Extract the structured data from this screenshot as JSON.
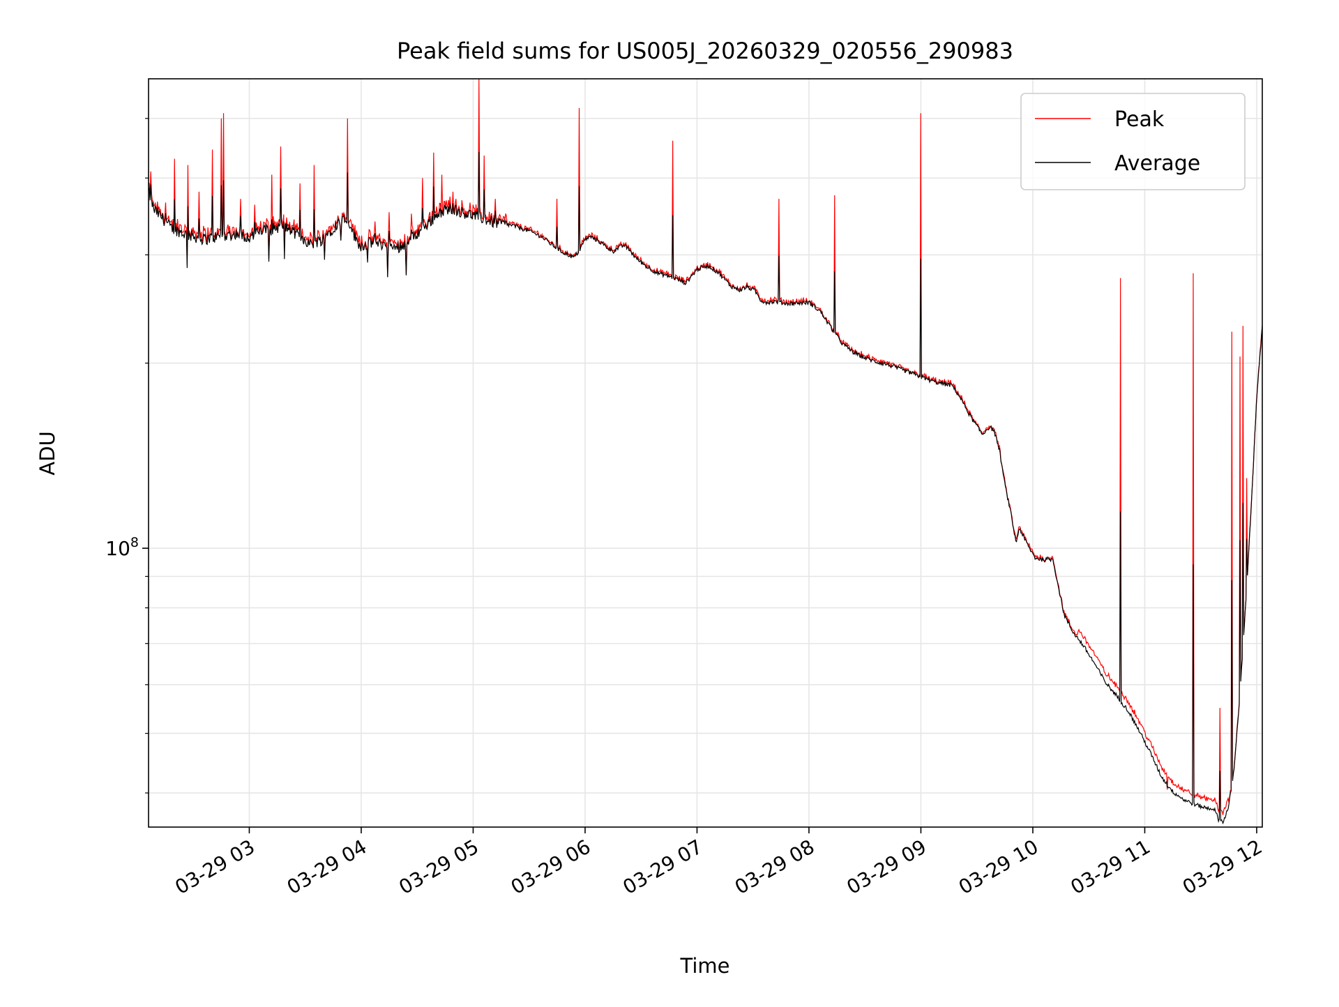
{
  "chart_data": {
    "type": "line",
    "title": "Peak field sums for US005J_20260329_020556_290983",
    "xlabel": "Time",
    "ylabel": "ADU",
    "yscale": "log",
    "ylim": [
      35200000,
      580000000
    ],
    "xlim_hours": [
      2.1,
      12.05
    ],
    "grid": true,
    "legend_position": "top-right",
    "x_ticks": [
      {
        "h": 3,
        "label": "03-29 03"
      },
      {
        "h": 4,
        "label": "03-29 04"
      },
      {
        "h": 5,
        "label": "03-29 05"
      },
      {
        "h": 6,
        "label": "03-29 06"
      },
      {
        "h": 7,
        "label": "03-29 07"
      },
      {
        "h": 8,
        "label": "03-29 08"
      },
      {
        "h": 9,
        "label": "03-29 09"
      },
      {
        "h": 10,
        "label": "03-29 10"
      },
      {
        "h": 11,
        "label": "03-29 11"
      },
      {
        "h": 12,
        "label": "03-29 12"
      }
    ],
    "y_major_ticks": [
      {
        "value": 100000000,
        "base": "10",
        "exp": "8"
      }
    ],
    "y_minor_ticks": [
      40000000,
      50000000,
      60000000,
      70000000,
      80000000,
      90000000,
      200000000,
      300000000,
      400000000,
      500000000
    ],
    "series": [
      {
        "name": "Average",
        "color": "#000000",
        "points": [
          [
            2.1,
            380000000
          ],
          [
            2.15,
            355000000
          ],
          [
            2.22,
            345000000
          ],
          [
            2.3,
            332000000
          ],
          [
            2.45,
            323000000
          ],
          [
            2.6,
            318000000
          ],
          [
            2.75,
            322000000
          ],
          [
            2.9,
            325000000
          ],
          [
            3.0,
            320000000
          ],
          [
            3.1,
            328000000
          ],
          [
            3.2,
            330000000
          ],
          [
            3.3,
            335000000
          ],
          [
            3.45,
            322000000
          ],
          [
            3.55,
            312000000
          ],
          [
            3.65,
            318000000
          ],
          [
            3.75,
            332000000
          ],
          [
            3.85,
            345000000
          ],
          [
            3.9,
            338000000
          ],
          [
            3.95,
            318000000
          ],
          [
            4.0,
            310000000
          ],
          [
            4.1,
            315000000
          ],
          [
            4.2,
            312000000
          ],
          [
            4.3,
            308000000
          ],
          [
            4.4,
            312000000
          ],
          [
            4.5,
            325000000
          ],
          [
            4.6,
            338000000
          ],
          [
            4.7,
            352000000
          ],
          [
            4.8,
            358000000
          ],
          [
            4.9,
            352000000
          ],
          [
            5.0,
            348000000
          ],
          [
            5.1,
            343000000
          ],
          [
            5.2,
            338000000
          ],
          [
            5.35,
            335000000
          ],
          [
            5.5,
            328000000
          ],
          [
            5.6,
            322000000
          ],
          [
            5.7,
            312000000
          ],
          [
            5.8,
            303000000
          ],
          [
            5.9,
            297000000
          ],
          [
            5.95,
            305000000
          ],
          [
            6.0,
            318000000
          ],
          [
            6.05,
            321000000
          ],
          [
            6.12,
            316000000
          ],
          [
            6.2,
            308000000
          ],
          [
            6.25,
            304000000
          ],
          [
            6.3,
            308000000
          ],
          [
            6.35,
            311000000
          ],
          [
            6.4,
            305000000
          ],
          [
            6.45,
            297000000
          ],
          [
            6.55,
            287000000
          ],
          [
            6.65,
            280000000
          ],
          [
            6.75,
            277000000
          ],
          [
            6.8,
            275000000
          ],
          [
            6.9,
            270000000
          ],
          [
            6.95,
            277000000
          ],
          [
            7.0,
            284000000
          ],
          [
            7.1,
            288000000
          ],
          [
            7.2,
            280000000
          ],
          [
            7.3,
            267000000
          ],
          [
            7.38,
            263000000
          ],
          [
            7.45,
            266000000
          ],
          [
            7.52,
            262000000
          ],
          [
            7.57,
            253000000
          ],
          [
            7.62,
            251000000
          ],
          [
            7.7,
            252000000
          ],
          [
            7.8,
            250000000
          ],
          [
            8.0,
            251000000
          ],
          [
            8.1,
            243000000
          ],
          [
            8.2,
            228000000
          ],
          [
            8.3,
            215000000
          ],
          [
            8.4,
            208000000
          ],
          [
            8.5,
            204000000
          ],
          [
            8.6,
            201000000
          ],
          [
            8.7,
            199000000
          ],
          [
            8.8,
            196000000
          ],
          [
            8.9,
            193000000
          ],
          [
            9.0,
            190000000
          ],
          [
            9.1,
            187000000
          ],
          [
            9.2,
            185000000
          ],
          [
            9.28,
            184000000
          ],
          [
            9.35,
            176000000
          ],
          [
            9.45,
            163000000
          ],
          [
            9.52,
            156000000
          ],
          [
            9.55,
            153000000
          ],
          [
            9.6,
            157000000
          ],
          [
            9.65,
            156000000
          ],
          [
            9.7,
            145000000
          ],
          [
            9.75,
            127000000
          ],
          [
            9.8,
            115000000
          ],
          [
            9.85,
            102000000
          ],
          [
            9.88,
            108000000
          ],
          [
            9.92,
            104000000
          ],
          [
            9.97,
            100000000
          ],
          [
            10.02,
            96500000
          ],
          [
            10.1,
            95700000
          ],
          [
            10.18,
            96000000
          ],
          [
            10.22,
            88000000
          ],
          [
            10.28,
            78000000
          ],
          [
            10.35,
            73500000
          ],
          [
            10.45,
            69500000
          ],
          [
            10.55,
            65000000
          ],
          [
            10.65,
            60500000
          ],
          [
            10.75,
            57500000
          ],
          [
            10.85,
            54500000
          ],
          [
            10.95,
            50500000
          ],
          [
            11.05,
            46500000
          ],
          [
            11.15,
            42500000
          ],
          [
            11.25,
            40200000
          ],
          [
            11.35,
            39000000
          ],
          [
            11.45,
            38300000
          ],
          [
            11.55,
            37800000
          ],
          [
            11.62,
            37700000
          ],
          [
            11.66,
            36200000
          ],
          [
            11.7,
            35900000
          ],
          [
            11.75,
            38000000
          ],
          [
            11.8,
            44000000
          ],
          [
            11.85,
            58000000
          ],
          [
            11.9,
            80000000
          ],
          [
            11.95,
            115000000
          ],
          [
            12.0,
            175000000
          ],
          [
            12.05,
            230000000
          ]
        ]
      },
      {
        "name": "Peak",
        "color": "#ff0000",
        "spikes": [
          [
            2.12,
            410000000
          ],
          [
            2.25,
            365000000
          ],
          [
            2.33,
            430000000
          ],
          [
            2.45,
            420000000
          ],
          [
            2.55,
            380000000
          ],
          [
            2.67,
            445000000
          ],
          [
            2.75,
            500000000
          ],
          [
            2.77,
            510000000
          ],
          [
            2.92,
            370000000
          ],
          [
            3.05,
            362000000
          ],
          [
            3.2,
            405000000
          ],
          [
            3.28,
            450000000
          ],
          [
            3.45,
            392000000
          ],
          [
            3.58,
            420000000
          ],
          [
            3.88,
            500000000
          ],
          [
            4.12,
            340000000
          ],
          [
            4.25,
            352000000
          ],
          [
            4.45,
            350000000
          ],
          [
            4.55,
            400000000
          ],
          [
            4.65,
            440000000
          ],
          [
            4.72,
            405000000
          ],
          [
            4.82,
            380000000
          ],
          [
            5.05,
            580000000
          ],
          [
            5.1,
            435000000
          ],
          [
            5.2,
            370000000
          ],
          [
            5.75,
            370000000
          ],
          [
            5.95,
            520000000
          ],
          [
            6.78,
            460000000
          ],
          [
            7.73,
            370000000
          ],
          [
            8.23,
            375000000
          ],
          [
            9.0,
            510000000
          ],
          [
            10.78,
            275000000
          ],
          [
            11.2,
            40500000
          ],
          [
            11.43,
            280000000
          ],
          [
            11.67,
            55000000
          ],
          [
            11.78,
            225000000
          ],
          [
            11.85,
            205000000
          ],
          [
            11.88,
            230000000
          ],
          [
            11.91,
            130000000
          ]
        ]
      }
    ]
  }
}
